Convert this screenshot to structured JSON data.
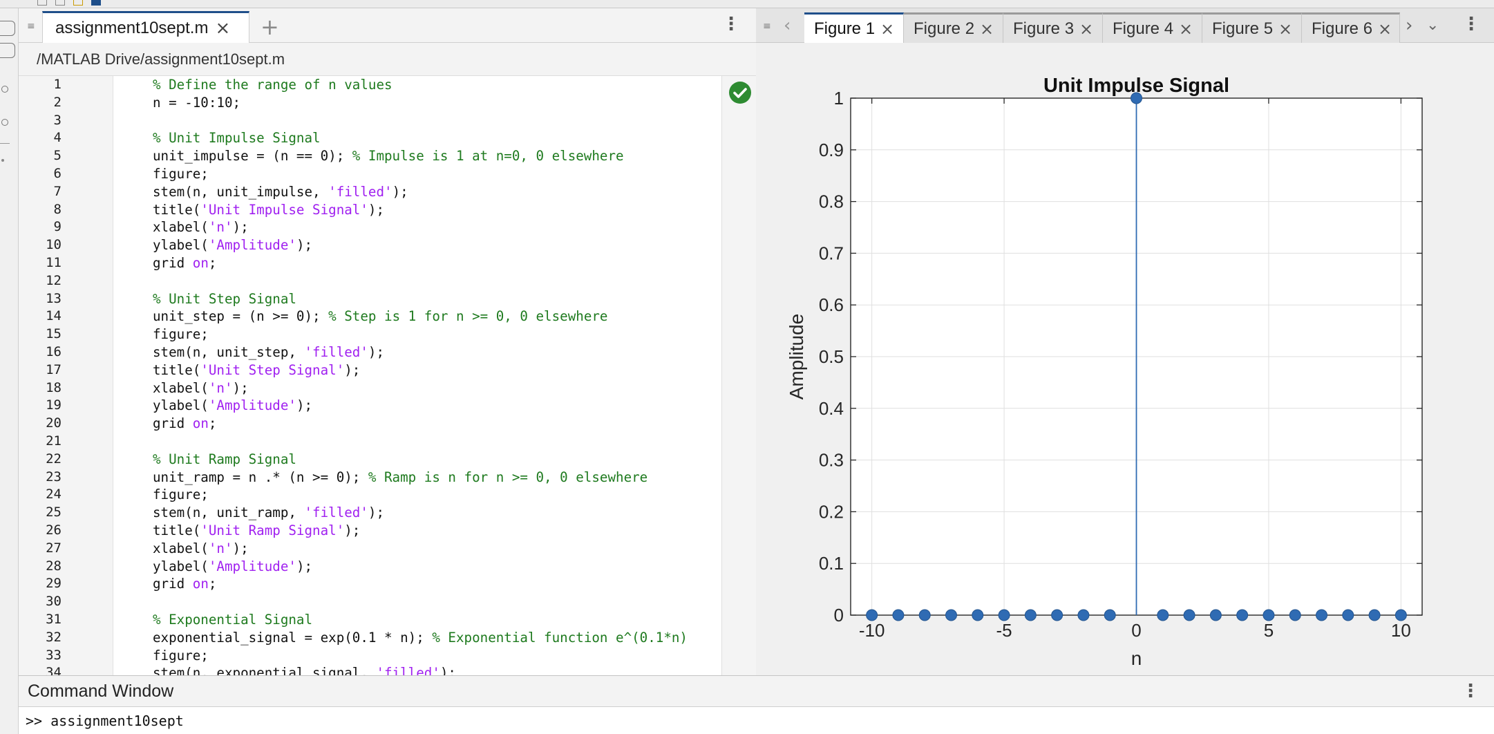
{
  "editor": {
    "tab_label": "assignment10sept.m",
    "file_path": "/MATLAB Drive/assignment10sept.m",
    "lines": [
      [
        {
          "t": "% Define the range of n values",
          "c": "c"
        }
      ],
      [
        {
          "t": "n = -10:10;",
          "c": ""
        }
      ],
      [],
      [
        {
          "t": "% Unit Impulse Signal",
          "c": "c"
        }
      ],
      [
        {
          "t": "unit_impulse = (n == 0); ",
          "c": ""
        },
        {
          "t": "% Impulse is 1 at n=0, 0 elsewhere",
          "c": "c"
        }
      ],
      [
        {
          "t": "figure;",
          "c": ""
        }
      ],
      [
        {
          "t": "stem(n, unit_impulse, ",
          "c": ""
        },
        {
          "t": "'filled'",
          "c": "s"
        },
        {
          "t": ");",
          "c": ""
        }
      ],
      [
        {
          "t": "title(",
          "c": ""
        },
        {
          "t": "'Unit Impulse Signal'",
          "c": "s"
        },
        {
          "t": ");",
          "c": ""
        }
      ],
      [
        {
          "t": "xlabel(",
          "c": ""
        },
        {
          "t": "'n'",
          "c": "s"
        },
        {
          "t": ");",
          "c": ""
        }
      ],
      [
        {
          "t": "ylabel(",
          "c": ""
        },
        {
          "t": "'Amplitude'",
          "c": "s"
        },
        {
          "t": ");",
          "c": ""
        }
      ],
      [
        {
          "t": "grid ",
          "c": ""
        },
        {
          "t": "on",
          "c": "k"
        },
        {
          "t": ";",
          "c": ""
        }
      ],
      [],
      [
        {
          "t": "% Unit Step Signal",
          "c": "c"
        }
      ],
      [
        {
          "t": "unit_step = (n >= 0); ",
          "c": ""
        },
        {
          "t": "% Step is 1 for n >= 0, 0 elsewhere",
          "c": "c"
        }
      ],
      [
        {
          "t": "figure;",
          "c": ""
        }
      ],
      [
        {
          "t": "stem(n, unit_step, ",
          "c": ""
        },
        {
          "t": "'filled'",
          "c": "s"
        },
        {
          "t": ");",
          "c": ""
        }
      ],
      [
        {
          "t": "title(",
          "c": ""
        },
        {
          "t": "'Unit Step Signal'",
          "c": "s"
        },
        {
          "t": ");",
          "c": ""
        }
      ],
      [
        {
          "t": "xlabel(",
          "c": ""
        },
        {
          "t": "'n'",
          "c": "s"
        },
        {
          "t": ");",
          "c": ""
        }
      ],
      [
        {
          "t": "ylabel(",
          "c": ""
        },
        {
          "t": "'Amplitude'",
          "c": "s"
        },
        {
          "t": ");",
          "c": ""
        }
      ],
      [
        {
          "t": "grid ",
          "c": ""
        },
        {
          "t": "on",
          "c": "k"
        },
        {
          "t": ";",
          "c": ""
        }
      ],
      [],
      [
        {
          "t": "% Unit Ramp Signal",
          "c": "c"
        }
      ],
      [
        {
          "t": "unit_ramp = n .* (n >= 0); ",
          "c": ""
        },
        {
          "t": "% Ramp is n for n >= 0, 0 elsewhere",
          "c": "c"
        }
      ],
      [
        {
          "t": "figure;",
          "c": ""
        }
      ],
      [
        {
          "t": "stem(n, unit_ramp, ",
          "c": ""
        },
        {
          "t": "'filled'",
          "c": "s"
        },
        {
          "t": ");",
          "c": ""
        }
      ],
      [
        {
          "t": "title(",
          "c": ""
        },
        {
          "t": "'Unit Ramp Signal'",
          "c": "s"
        },
        {
          "t": ");",
          "c": ""
        }
      ],
      [
        {
          "t": "xlabel(",
          "c": ""
        },
        {
          "t": "'n'",
          "c": "s"
        },
        {
          "t": ");",
          "c": ""
        }
      ],
      [
        {
          "t": "ylabel(",
          "c": ""
        },
        {
          "t": "'Amplitude'",
          "c": "s"
        },
        {
          "t": ");",
          "c": ""
        }
      ],
      [
        {
          "t": "grid ",
          "c": ""
        },
        {
          "t": "on",
          "c": "k"
        },
        {
          "t": ";",
          "c": ""
        }
      ],
      [],
      [
        {
          "t": "% Exponential Signal",
          "c": "c"
        }
      ],
      [
        {
          "t": "exponential_signal = exp(0.1 * n); ",
          "c": ""
        },
        {
          "t": "% Exponential function e^(0.1*n)",
          "c": "c"
        }
      ],
      [
        {
          "t": "figure;",
          "c": ""
        }
      ],
      [
        {
          "t": "stem(n, exponential_signal, ",
          "c": ""
        },
        {
          "t": "'filled'",
          "c": "s"
        },
        {
          "t": ");",
          "c": ""
        }
      ]
    ]
  },
  "figures": {
    "tabs": [
      "Figure 1",
      "Figure 2",
      "Figure 3",
      "Figure 4",
      "Figure 5",
      "Figure 6"
    ],
    "active": "Figure 1"
  },
  "chart_data": {
    "type": "stem",
    "title": "Unit Impulse Signal",
    "xlabel": "n",
    "ylabel": "Amplitude",
    "xlim": [
      -10.8,
      10.8
    ],
    "ylim": [
      0,
      1
    ],
    "xticks": [
      -10,
      -5,
      0,
      5,
      10
    ],
    "yticks": [
      0,
      0.1,
      0.2,
      0.3,
      0.4,
      0.5,
      0.6,
      0.7,
      0.8,
      0.9,
      1
    ],
    "ytick_labels": [
      "0",
      "0.1",
      "0.2",
      "0.3",
      "0.4",
      "0.5",
      "0.6",
      "0.7",
      "0.8",
      "0.9",
      "1"
    ],
    "grid": true,
    "color": "#2f6bb3",
    "x": [
      -10,
      -9,
      -8,
      -7,
      -6,
      -5,
      -4,
      -3,
      -2,
      -1,
      0,
      1,
      2,
      3,
      4,
      5,
      6,
      7,
      8,
      9,
      10
    ],
    "y": [
      0,
      0,
      0,
      0,
      0,
      0,
      0,
      0,
      0,
      0,
      1,
      0,
      0,
      0,
      0,
      0,
      0,
      0,
      0,
      0,
      0
    ]
  },
  "command_window": {
    "title": "Command Window",
    "prompt": ">>",
    "command": "assignment10sept"
  }
}
